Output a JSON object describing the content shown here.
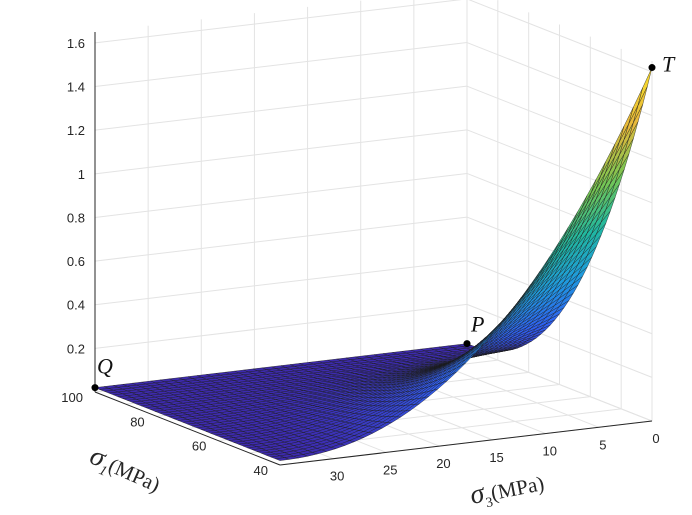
{
  "chart_data": {
    "type": "surface",
    "title": "",
    "xlabel": "σ₃(MPa)",
    "ylabel": "σ₁(MPa)",
    "zlabel": "",
    "xlim": [
      0,
      35
    ],
    "ylim": [
      40,
      100
    ],
    "zlim": [
      0,
      1.65
    ],
    "x_ticks": [
      "30",
      "25",
      "20",
      "15",
      "10",
      "5",
      "0"
    ],
    "y_ticks": [
      "100",
      "80",
      "60",
      "40"
    ],
    "z_ticks": [
      "0.2",
      "0.4",
      "0.6",
      "0.8",
      "1",
      "1.2",
      "1.4",
      "1.6"
    ],
    "colormap": [
      "#3e26a8",
      "#2f5ff0",
      "#1f9adf",
      "#20b8a0",
      "#77c652",
      "#e7b83b",
      "#f9e02b"
    ],
    "grid": true,
    "points": [
      {
        "label": "T",
        "x": 0,
        "y": 40,
        "z": 1.62
      },
      {
        "label": "Q",
        "x": 35,
        "y": 100,
        "z": 0.02
      },
      {
        "label": "P",
        "x": 0,
        "y": 100,
        "z": 0.02
      }
    ]
  }
}
